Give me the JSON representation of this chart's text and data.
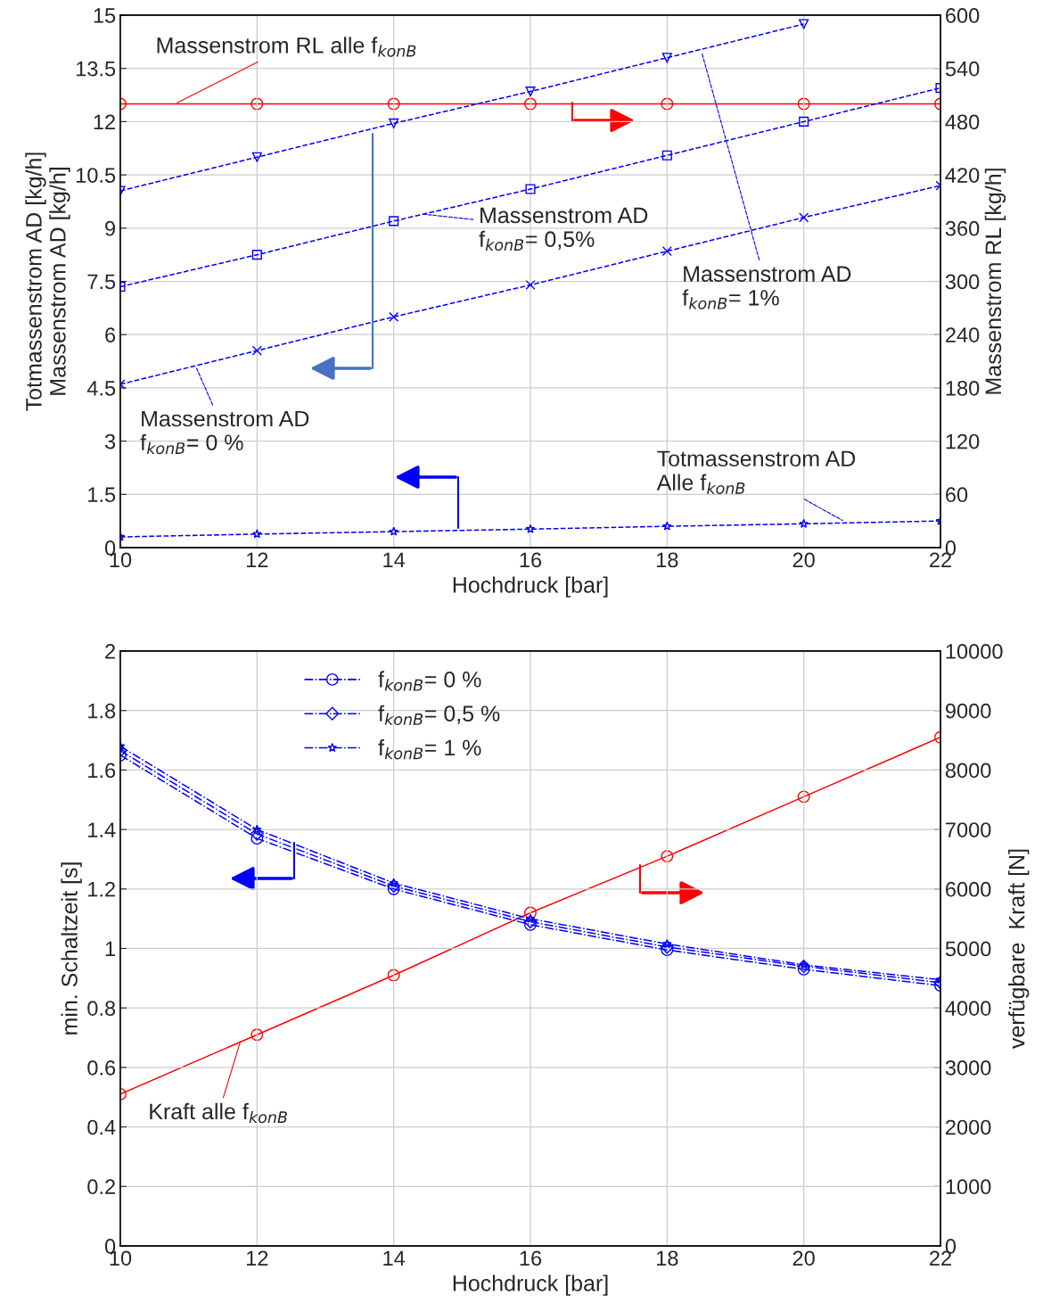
{
  "chart_data": [
    {
      "type": "line",
      "x": [
        10,
        12,
        14,
        16,
        18,
        20,
        22
      ],
      "xlabel": "Hochdruck [bar]",
      "ylabel": "Totmassenstrom AD [kg/h]\nMassenstrom AD [kg/h]",
      "y2label": "Massenstrom RL [kg/h]",
      "xlim": [
        10,
        22
      ],
      "xticks": [
        10,
        12,
        14,
        16,
        18,
        20,
        22
      ],
      "ylim": [
        0,
        15
      ],
      "yticks": [
        0,
        1.5,
        3,
        4.5,
        6,
        7.5,
        9,
        10.5,
        12,
        13.5,
        15
      ],
      "y2lim": [
        0,
        600
      ],
      "y2ticks": [
        0,
        60,
        120,
        180,
        240,
        300,
        360,
        420,
        480,
        540,
        600
      ],
      "grid": true,
      "series": [
        {
          "color": "#ff0000",
          "axis": "y2",
          "marker": "circle",
          "line_style": "solid",
          "values": [
            500,
            500,
            500,
            500,
            500,
            500,
            500
          ]
        },
        {
          "color": "#0000ff",
          "marker": "triangle",
          "line_style": "dashed",
          "values": [
            10.05,
            11.0,
            11.95,
            12.85,
            13.8,
            14.75,
            null
          ]
        },
        {
          "color": "#0000ff",
          "marker": "square",
          "line_style": "dashed",
          "values": [
            7.35,
            8.25,
            9.2,
            10.1,
            11.05,
            12.0,
            12.95
          ]
        },
        {
          "color": "#0000ff",
          "marker": "cross",
          "line_style": "dashed",
          "values": [
            4.6,
            5.55,
            6.5,
            7.4,
            8.35,
            9.3,
            10.2
          ]
        },
        {
          "color": "#0000ff",
          "marker": "star",
          "line_style": "dashed",
          "values": [
            0.3,
            0.38,
            0.45,
            0.52,
            0.6,
            0.67,
            0.75
          ]
        }
      ],
      "annotations": [
        {
          "text": "Massenstrom RL alle f$_{konB}$",
          "x": 10.8,
          "y": 12.5
        },
        {
          "text": "Massenstrom AD\nf$_{konB}$= 0,5%",
          "x": 14.4,
          "y": 9.4
        },
        {
          "text": "Massenstrom AD\nf$_{konB}$= 1%",
          "x": 18.5,
          "y": 14.0
        },
        {
          "text": "Massenstrom AD\nf$_{konB}$= 0 %",
          "x": 11.1,
          "y": 5.12
        },
        {
          "text": "Totmassenstrom AD\nAlle f$_{konB}$",
          "x": 20.6,
          "y": 0.73
        }
      ]
    },
    {
      "type": "line",
      "x": [
        10,
        12,
        14,
        16,
        18,
        20,
        22
      ],
      "xlabel": "Hochdruck [bar]",
      "ylabel": "min. Schaltzeit [s]",
      "y2label": "verfügbare  Kraft [N]",
      "xlim": [
        10,
        22
      ],
      "xticks": [
        10,
        12,
        14,
        16,
        18,
        20,
        22
      ],
      "ylim": [
        0,
        2
      ],
      "yticks": [
        0,
        0.2,
        0.4,
        0.6,
        0.8,
        1,
        1.2,
        1.4,
        1.6,
        1.8,
        2
      ],
      "y2lim": [
        0,
        10000
      ],
      "y2ticks": [
        0,
        1000,
        2000,
        3000,
        4000,
        5000,
        6000,
        7000,
        8000,
        9000,
        10000
      ],
      "grid": true,
      "legend": "top left",
      "series": [
        {
          "name": "f$_{konB}$= 0 %",
          "color": "#0000ff",
          "marker": "circle",
          "line_style": "dashdot",
          "values": [
            1.65,
            1.37,
            1.2,
            1.08,
            0.995,
            0.93,
            0.875
          ]
        },
        {
          "name": "f$_{konB}$= 0,5 %",
          "color": "#0000ff",
          "marker": "diamond",
          "line_style": "dashdot",
          "values": [
            1.665,
            1.385,
            1.21,
            1.09,
            1.005,
            0.94,
            0.885
          ]
        },
        {
          "name": "f$_{konB}$= 1 %",
          "color": "#0000ff",
          "marker": "star",
          "line_style": "dashdot",
          "values": [
            1.68,
            1.4,
            1.22,
            1.1,
            1.015,
            0.945,
            0.895
          ]
        },
        {
          "color": "#ff0000",
          "axis": "y2",
          "marker": "circle",
          "line_style": "solid",
          "values": [
            2550,
            3550,
            4550,
            5600,
            6550,
            7550,
            8550
          ]
        }
      ],
      "annotations": [
        {
          "text": "Kraft alle f$_{konB}$",
          "x": 11.76,
          "y": 0.69
        }
      ]
    }
  ]
}
